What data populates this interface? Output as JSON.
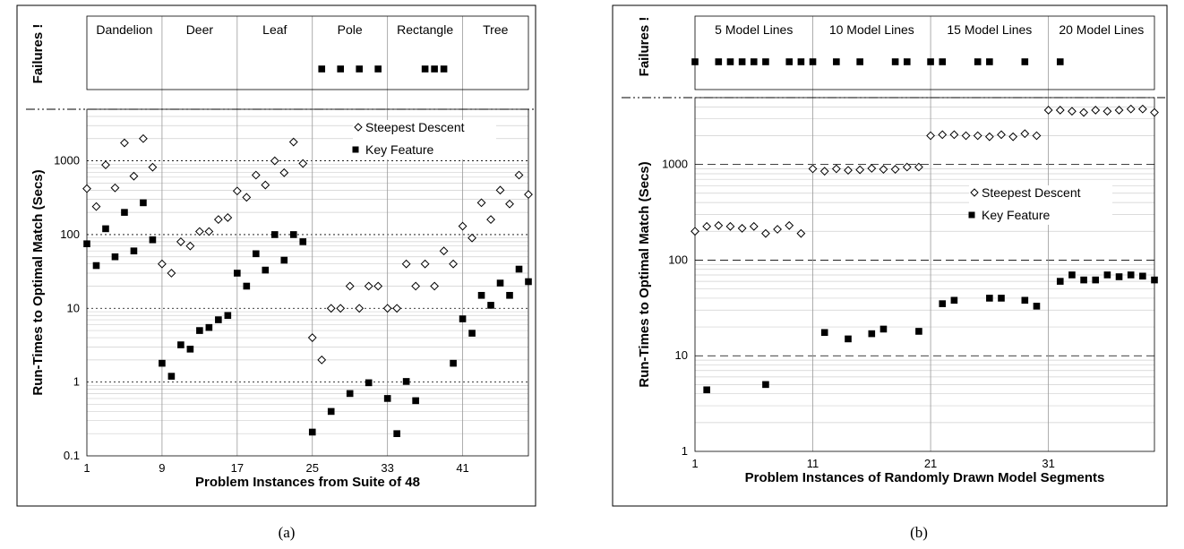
{
  "chart_data": [
    {
      "type": "scatter",
      "caption": "(a)",
      "failures_label": "Failures !",
      "ylabel": "Run-Times to Optimal Match (Secs)",
      "xlabel": "Problem Instances from Suite of 48",
      "y_scale": "log",
      "ylim": [
        0.1,
        5000
      ],
      "y_ticks": [
        0.1,
        1,
        10,
        100,
        1000
      ],
      "y_tick_labels": [
        "0.1",
        "1",
        "10",
        "100",
        "1000"
      ],
      "xlim": [
        1,
        48
      ],
      "x_ticks": [
        1,
        9,
        17,
        25,
        33,
        41
      ],
      "x_tick_labels": [
        "1",
        "9",
        "17",
        "25",
        "33",
        "41"
      ],
      "categories": [
        "Dandelion",
        "Deer",
        "Leaf",
        "Pole",
        "Rectangle",
        "Tree"
      ],
      "category_starts": [
        1,
        9,
        17,
        25,
        33,
        41
      ],
      "grid": true,
      "legend_position": "top-right",
      "series": [
        {
          "name": "Steepest Descent",
          "marker": "diamond",
          "points": [
            [
              1,
              420
            ],
            [
              2,
              240
            ],
            [
              3,
              880
            ],
            [
              4,
              430
            ],
            [
              5,
              1750
            ],
            [
              6,
              620
            ],
            [
              7,
              2000
            ],
            [
              8,
              820
            ],
            [
              9,
              40
            ],
            [
              10,
              30
            ],
            [
              11,
              80
            ],
            [
              12,
              70
            ],
            [
              13,
              110
            ],
            [
              14,
              110
            ],
            [
              15,
              160
            ],
            [
              16,
              170
            ],
            [
              17,
              390
            ],
            [
              18,
              320
            ],
            [
              19,
              640
            ],
            [
              20,
              470
            ],
            [
              21,
              1000
            ],
            [
              22,
              690
            ],
            [
              23,
              1800
            ],
            [
              24,
              920
            ],
            [
              25,
              4
            ],
            [
              26,
              2
            ],
            [
              27,
              10
            ],
            [
              28,
              10
            ],
            [
              29,
              20
            ],
            [
              30,
              10
            ],
            [
              31,
              20
            ],
            [
              32,
              20
            ],
            [
              33,
              10
            ],
            [
              34,
              10
            ],
            [
              35,
              40
            ],
            [
              36,
              20
            ],
            [
              37,
              40
            ],
            [
              38,
              20
            ],
            [
              39,
              60
            ],
            [
              40,
              40
            ],
            [
              41,
              130
            ],
            [
              42,
              90
            ],
            [
              43,
              270
            ],
            [
              44,
              160
            ],
            [
              45,
              400
            ],
            [
              46,
              260
            ],
            [
              47,
              640
            ],
            [
              48,
              350
            ]
          ]
        },
        {
          "name": "Key Feature",
          "marker": "square",
          "points": [
            [
              1,
              75
            ],
            [
              2,
              38
            ],
            [
              3,
              120
            ],
            [
              4,
              50
            ],
            [
              5,
              200
            ],
            [
              6,
              60
            ],
            [
              7,
              270
            ],
            [
              8,
              85
            ],
            [
              9,
              1.8
            ],
            [
              10,
              1.2
            ],
            [
              11,
              3.2
            ],
            [
              12,
              2.8
            ],
            [
              13,
              5
            ],
            [
              14,
              5.5
            ],
            [
              15,
              7
            ],
            [
              16,
              8
            ],
            [
              17,
              30
            ],
            [
              18,
              20
            ],
            [
              19,
              55
            ],
            [
              20,
              33
            ],
            [
              21,
              100
            ],
            [
              22,
              45
            ],
            [
              23,
              100
            ],
            [
              24,
              80
            ],
            [
              25,
              0.21
            ],
            [
              27,
              0.4
            ],
            [
              29,
              0.7
            ],
            [
              31,
              0.98
            ],
            [
              33,
              0.6
            ],
            [
              34,
              0.2
            ],
            [
              35,
              1.02
            ],
            [
              36,
              0.56
            ],
            [
              40,
              1.8
            ],
            [
              41,
              7.2
            ],
            [
              42,
              4.6
            ],
            [
              43,
              15
            ],
            [
              44,
              11
            ],
            [
              45,
              22
            ],
            [
              46,
              15
            ],
            [
              47,
              34
            ],
            [
              48,
              23
            ]
          ]
        }
      ],
      "failures": [
        26,
        28,
        30,
        32,
        37,
        38,
        39
      ]
    },
    {
      "type": "scatter",
      "caption": "(b)",
      "failures_label": "Failures !",
      "ylabel": "Run-Times to Optimal Match (Secs)",
      "xlabel": "Problem Instances of Randomly Drawn Model Segments",
      "y_scale": "log",
      "ylim": [
        1,
        5000
      ],
      "y_ticks": [
        1,
        10,
        100,
        1000
      ],
      "y_tick_labels": [
        "1",
        "10",
        "100",
        "1000"
      ],
      "xlim": [
        1,
        40
      ],
      "x_ticks": [
        1,
        11,
        21,
        31
      ],
      "x_tick_labels": [
        "1",
        "11",
        "21",
        "31"
      ],
      "categories": [
        "5 Model Lines",
        "10 Model Lines",
        "15 Model Lines",
        "20 Model Lines"
      ],
      "category_starts": [
        1,
        11,
        21,
        31
      ],
      "grid": true,
      "legend_position": "center-right",
      "series": [
        {
          "name": "Steepest Descent",
          "marker": "diamond",
          "points": [
            [
              1,
              200
            ],
            [
              2,
              225
            ],
            [
              3,
              230
            ],
            [
              4,
              225
            ],
            [
              5,
              215
            ],
            [
              6,
              225
            ],
            [
              7,
              190
            ],
            [
              8,
              210
            ],
            [
              9,
              230
            ],
            [
              10,
              190
            ],
            [
              11,
              900
            ],
            [
              12,
              850
            ],
            [
              13,
              900
            ],
            [
              14,
              870
            ],
            [
              15,
              880
            ],
            [
              16,
              910
            ],
            [
              17,
              890
            ],
            [
              18,
              890
            ],
            [
              19,
              940
            ],
            [
              20,
              940
            ],
            [
              21,
              2000
            ],
            [
              22,
              2050
            ],
            [
              23,
              2050
            ],
            [
              24,
              2000
            ],
            [
              25,
              2000
            ],
            [
              26,
              1950
            ],
            [
              27,
              2050
            ],
            [
              28,
              1950
            ],
            [
              29,
              2100
            ],
            [
              30,
              2000
            ],
            [
              31,
              3700
            ],
            [
              32,
              3700
            ],
            [
              33,
              3600
            ],
            [
              34,
              3500
            ],
            [
              35,
              3700
            ],
            [
              36,
              3600
            ],
            [
              37,
              3700
            ],
            [
              38,
              3800
            ],
            [
              39,
              3800
            ],
            [
              40,
              3500
            ]
          ]
        },
        {
          "name": "Key Feature",
          "marker": "square",
          "points": [
            [
              2,
              4.4
            ],
            [
              7,
              5
            ],
            [
              12,
              17.5
            ],
            [
              14,
              15
            ],
            [
              16,
              17
            ],
            [
              17,
              19
            ],
            [
              20,
              18
            ],
            [
              22,
              35
            ],
            [
              23,
              38
            ],
            [
              26,
              40
            ],
            [
              27,
              40
            ],
            [
              29,
              38
            ],
            [
              30,
              33
            ],
            [
              32,
              60
            ],
            [
              33,
              70
            ],
            [
              34,
              62
            ],
            [
              35,
              62
            ],
            [
              36,
              70
            ],
            [
              37,
              67
            ],
            [
              38,
              70
            ],
            [
              39,
              68
            ],
            [
              40,
              62
            ]
          ]
        }
      ],
      "failures": [
        1,
        3,
        4,
        5,
        6,
        7,
        9,
        10,
        11,
        13,
        15,
        18,
        19,
        21,
        22,
        25,
        26,
        29,
        32
      ]
    }
  ]
}
